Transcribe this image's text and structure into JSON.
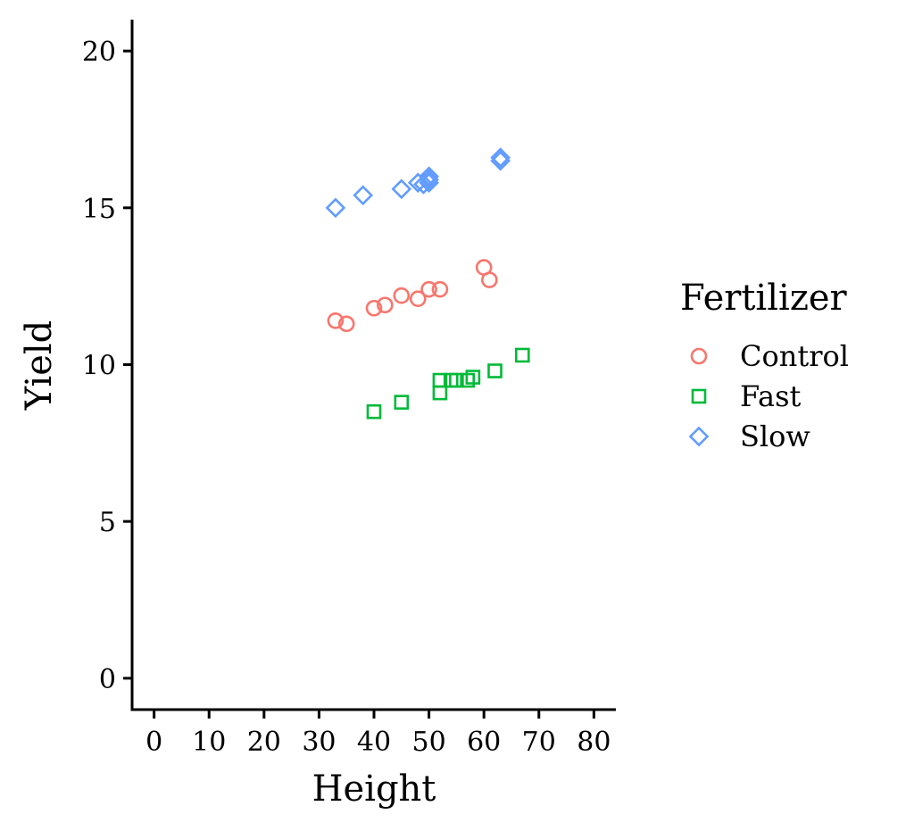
{
  "chart_data": {
    "type": "scatter",
    "xlabel": "Height",
    "ylabel": "Yield",
    "xlim": [
      -4,
      84
    ],
    "ylim": [
      -1,
      21
    ],
    "xticks": [
      0,
      10,
      20,
      30,
      40,
      50,
      60,
      70,
      80
    ],
    "yticks": [
      0,
      5,
      10,
      15,
      20
    ],
    "grid": false,
    "legend": {
      "title": "Fertilizer",
      "placement": "right"
    },
    "series": [
      {
        "name": "Control",
        "marker": "circle",
        "color": "#F8766D",
        "x": [
          33,
          35,
          40,
          42,
          45,
          48,
          50,
          52,
          60,
          61
        ],
        "y": [
          11.4,
          11.3,
          11.8,
          11.9,
          12.2,
          12.1,
          12.4,
          12.4,
          13.1,
          12.7
        ]
      },
      {
        "name": "Fast",
        "marker": "square",
        "color": "#00BA38",
        "x": [
          40,
          45,
          52,
          52,
          54,
          55,
          57,
          58,
          62,
          67
        ],
        "y": [
          8.5,
          8.8,
          9.5,
          9.1,
          9.5,
          9.5,
          9.5,
          9.6,
          9.8,
          10.3
        ]
      },
      {
        "name": "Slow",
        "marker": "diamond",
        "color": "#619CFF",
        "x": [
          33,
          38,
          45,
          48,
          49,
          50,
          50,
          50,
          63,
          63
        ],
        "y": [
          15.0,
          15.4,
          15.6,
          15.8,
          15.75,
          15.9,
          16.0,
          15.8,
          16.5,
          16.6
        ]
      }
    ]
  }
}
